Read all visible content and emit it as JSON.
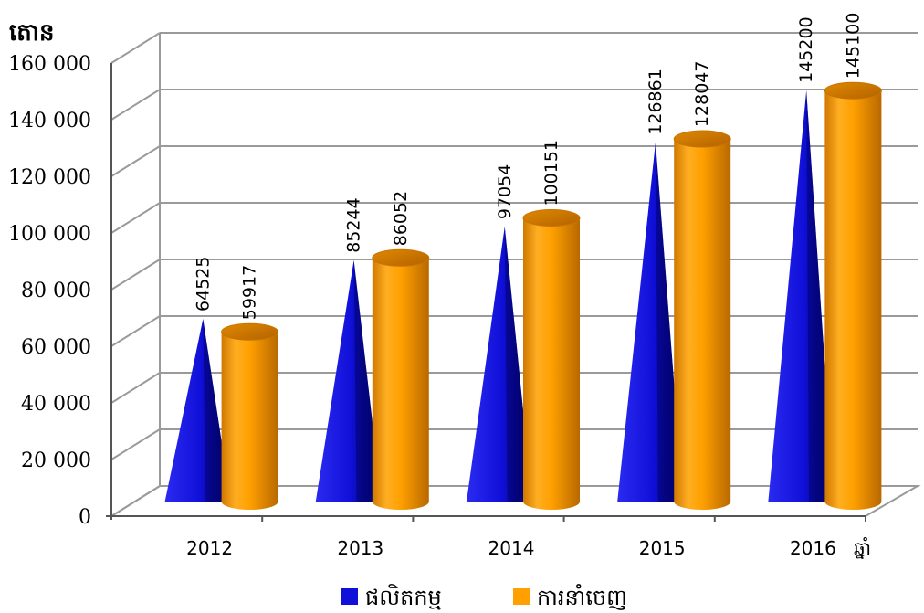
{
  "chart_data": {
    "type": "bar",
    "title": "",
    "ylabel": "តោន",
    "xlabel": "ឆ្នាំ",
    "categories": [
      "2012",
      "2013",
      "2014",
      "2015",
      "2016"
    ],
    "ylim": [
      0,
      160000
    ],
    "yticks": [
      "0",
      "20 000",
      "40 000",
      "60 000",
      "80 000",
      "100 000",
      "120 000",
      "140 000",
      "160 000"
    ],
    "grid": true,
    "legend": "bottom",
    "series": [
      {
        "name": "ផលិតកម្ម",
        "shape": "cone",
        "color": "#1010d8",
        "values": [
          64525,
          85244,
          97054,
          126861,
          145200
        ]
      },
      {
        "name": "ការនាំចេញ",
        "shape": "cylinder",
        "color": "#ffa000",
        "values": [
          59917,
          86052,
          100151,
          128047,
          145100
        ]
      }
    ]
  }
}
